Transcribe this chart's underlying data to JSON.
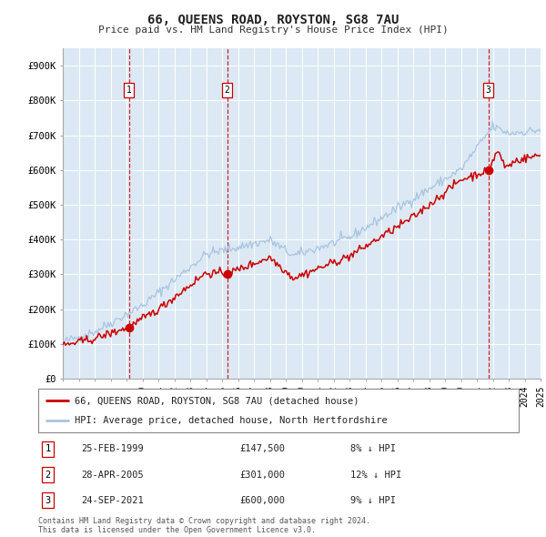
{
  "title": "66, QUEENS ROAD, ROYSTON, SG8 7AU",
  "subtitle": "Price paid vs. HM Land Registry's House Price Index (HPI)",
  "bg_color": "#dce9f5",
  "line_color_hpi": "#a8c4e0",
  "line_color_price": "#cc0000",
  "sales": [
    {
      "date_num": 1999.15,
      "price": 147500,
      "label": "1"
    },
    {
      "date_num": 2005.32,
      "price": 301000,
      "label": "2"
    },
    {
      "date_num": 2021.73,
      "price": 600000,
      "label": "3"
    }
  ],
  "sale_dates_str": [
    "25-FEB-1999",
    "28-APR-2005",
    "24-SEP-2021"
  ],
  "sale_prices_str": [
    "£147,500",
    "£301,000",
    "£600,000"
  ],
  "sale_pct": [
    "8% ↓ HPI",
    "12% ↓ HPI",
    "9% ↓ HPI"
  ],
  "legend_line1": "66, QUEENS ROAD, ROYSTON, SG8 7AU (detached house)",
  "legend_line2": "HPI: Average price, detached house, North Hertfordshire",
  "footnote1": "Contains HM Land Registry data © Crown copyright and database right 2024.",
  "footnote2": "This data is licensed under the Open Government Licence v3.0.",
  "ylim_max": 950000,
  "yticks": [
    0,
    100000,
    200000,
    300000,
    400000,
    500000,
    600000,
    700000,
    800000,
    900000
  ]
}
